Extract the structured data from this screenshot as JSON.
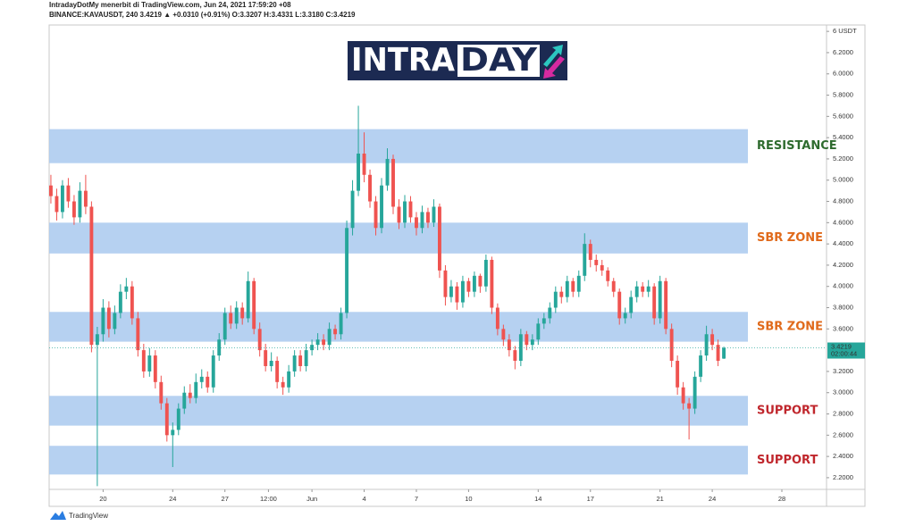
{
  "chart_data": {
    "type": "candlestick",
    "title": "IntradayDotMy menerbit di TradingView.com, Jun 24, 2021 17:59:20 +08",
    "subtitle": "BINANCE:KAVAUSDT, 240  3.4219 ▲ +0.0310 (+0.91%)  O:3.3207  H:3.4331  L:3.3180  C:3.4219",
    "logo": [
      "INTRA",
      "DAY"
    ],
    "brand": "TradingView",
    "countdown": "02:00:44",
    "up_color": "#26a69a",
    "down_color": "#ef5350",
    "zone_color": "#a9c9ee",
    "grid": false,
    "xlim": [
      -0.3,
      133.7
    ],
    "ylim": [
      2.09,
      6.46
    ],
    "xticks": [
      {
        "value": 9,
        "label": "20"
      },
      {
        "value": 21,
        "label": "24"
      },
      {
        "value": 30,
        "label": "27"
      },
      {
        "value": 37.5,
        "label": "12:00"
      },
      {
        "value": 45,
        "label": "Jun"
      },
      {
        "value": 54,
        "label": "4"
      },
      {
        "value": 63,
        "label": "7"
      },
      {
        "value": 72,
        "label": "10"
      },
      {
        "value": 84,
        "label": "14"
      },
      {
        "value": 93,
        "label": "17"
      },
      {
        "value": 105,
        "label": "21"
      },
      {
        "value": 114,
        "label": "24"
      },
      {
        "value": 126,
        "label": "28"
      }
    ],
    "yticks": [
      {
        "value": 2.2,
        "label": "2.2000"
      },
      {
        "value": 2.4,
        "label": "2.4000"
      },
      {
        "value": 2.6,
        "label": "2.6000"
      },
      {
        "value": 2.8,
        "label": "2.8000"
      },
      {
        "value": 3.0,
        "label": "3.0000"
      },
      {
        "value": 3.2,
        "label": "3.2000"
      },
      {
        "value": 3.6,
        "label": "3.6000"
      },
      {
        "value": 3.8,
        "label": "3.8000"
      },
      {
        "value": 4.0,
        "label": "4.0000"
      },
      {
        "value": 4.2,
        "label": "4.2000"
      },
      {
        "value": 4.4,
        "label": "4.4000"
      },
      {
        "value": 4.6,
        "label": "4.6000"
      },
      {
        "value": 4.8,
        "label": "4.8000"
      },
      {
        "value": 5.0,
        "label": "5.0000"
      },
      {
        "value": 5.2,
        "label": "5.2000"
      },
      {
        "value": 5.4,
        "label": "5.4000"
      },
      {
        "value": 5.6,
        "label": "5.6000"
      },
      {
        "value": 5.8,
        "label": "5.8000"
      },
      {
        "value": 6.0,
        "label": "6.0000"
      },
      {
        "value": 6.2,
        "label": "6.2000"
      },
      {
        "value": 6.4,
        "label": "6 USDT"
      }
    ],
    "zones": [
      {
        "label": "RESISTANCE",
        "low": 5.16,
        "high": 5.48,
        "color": "#2e6b2e"
      },
      {
        "label": "SBR ZONE",
        "low": 4.31,
        "high": 4.6,
        "color": "#e06a1b"
      },
      {
        "label": "SBR ZONE",
        "low": 3.48,
        "high": 3.76,
        "color": "#e06a1b"
      },
      {
        "label": "SUPPORT",
        "low": 2.69,
        "high": 2.97,
        "color": "#c0272d"
      },
      {
        "label": "SUPPORT",
        "low": 2.23,
        "high": 2.5,
        "color": "#c0272d"
      }
    ],
    "x": [
      0,
      1,
      2,
      3,
      4,
      5,
      6,
      7,
      8,
      9,
      10,
      11,
      12,
      13,
      14,
      15,
      16,
      17,
      18,
      19,
      20,
      21,
      22,
      23,
      24,
      25,
      26,
      27,
      28,
      29,
      30,
      31,
      32,
      33,
      34,
      35,
      36,
      37,
      38,
      39,
      40,
      41,
      42,
      43,
      44,
      45,
      46,
      47,
      48,
      49,
      50,
      51,
      52,
      53,
      54,
      55,
      56,
      57,
      58,
      59,
      60,
      61,
      62,
      63,
      64,
      65,
      66,
      67,
      68,
      69,
      70,
      71,
      72,
      73,
      74,
      75,
      76,
      77,
      78,
      79,
      80,
      81,
      82,
      83,
      84,
      85,
      86,
      87,
      88,
      89,
      90,
      91,
      92,
      93,
      94,
      95,
      96,
      97,
      98,
      99,
      100,
      101,
      102,
      103,
      104,
      105,
      106,
      107,
      108,
      109,
      110,
      111,
      112,
      113,
      114,
      115,
      116
    ],
    "open": [
      4.95,
      4.85,
      4.7,
      4.95,
      4.8,
      4.65,
      4.9,
      4.75,
      3.45,
      3.55,
      3.8,
      3.6,
      3.75,
      3.95,
      4.0,
      3.7,
      3.4,
      3.2,
      3.35,
      3.1,
      2.9,
      2.6,
      2.65,
      2.85,
      3.0,
      2.95,
      3.1,
      3.15,
      3.05,
      3.35,
      3.5,
      3.75,
      3.65,
      3.8,
      3.7,
      4.05,
      3.6,
      3.4,
      3.25,
      3.3,
      3.1,
      3.05,
      3.2,
      3.35,
      3.25,
      3.4,
      3.45,
      3.5,
      3.45,
      3.6,
      3.55,
      3.75,
      4.55,
      4.9,
      5.25,
      5.05,
      4.8,
      4.55,
      4.95,
      5.2,
      4.75,
      4.6,
      4.8,
      4.65,
      4.55,
      4.7,
      4.6,
      4.75,
      4.15,
      3.9,
      4.0,
      3.85,
      4.05,
      3.95,
      4.1,
      4.0,
      4.25,
      3.8,
      3.6,
      3.5,
      3.4,
      3.3,
      3.55,
      3.45,
      3.5,
      3.65,
      3.7,
      3.8,
      3.95,
      3.9,
      4.05,
      3.95,
      4.1,
      4.4,
      4.25,
      4.2,
      4.15,
      4.05,
      3.95,
      3.7,
      3.75,
      3.9,
      4.0,
      3.95,
      4.0,
      3.7,
      4.05,
      3.6,
      3.3,
      3.05,
      2.9,
      2.85,
      3.15,
      3.35,
      3.55,
      3.45,
      3.3207
    ],
    "high": [
      5.05,
      4.92,
      5.0,
      5.02,
      4.86,
      4.98,
      5.05,
      4.8,
      3.62,
      3.88,
      3.86,
      3.82,
      4.02,
      4.08,
      4.05,
      3.76,
      3.46,
      3.42,
      3.4,
      3.16,
      2.95,
      2.72,
      2.9,
      3.06,
      3.08,
      3.18,
      3.22,
      3.2,
      3.4,
      3.56,
      3.8,
      3.82,
      3.86,
      3.85,
      4.14,
      4.08,
      3.66,
      3.46,
      3.38,
      3.34,
      3.15,
      3.26,
      3.4,
      3.4,
      3.46,
      3.5,
      3.56,
      3.55,
      3.66,
      3.64,
      3.8,
      4.62,
      5.0,
      5.7,
      5.45,
      5.1,
      4.85,
      5.02,
      5.3,
      5.24,
      4.82,
      4.86,
      4.85,
      4.7,
      4.76,
      4.74,
      4.82,
      4.78,
      4.2,
      4.06,
      4.04,
      4.1,
      4.08,
      4.14,
      4.12,
      4.3,
      4.28,
      3.84,
      3.64,
      3.55,
      3.44,
      3.6,
      3.58,
      3.55,
      3.7,
      3.75,
      3.85,
      4.0,
      4.0,
      4.1,
      4.08,
      4.15,
      4.5,
      4.44,
      4.3,
      4.25,
      4.18,
      4.08,
      3.98,
      3.8,
      3.96,
      4.05,
      4.04,
      4.06,
      4.03,
      4.1,
      4.08,
      3.65,
      3.35,
      3.1,
      2.95,
      3.2,
      3.4,
      3.63,
      3.6,
      3.5,
      3.4331
    ],
    "low": [
      4.78,
      4.62,
      4.64,
      4.74,
      4.58,
      4.6,
      4.68,
      3.38,
      2.12,
      3.48,
      3.52,
      3.55,
      3.7,
      3.88,
      3.64,
      3.34,
      3.14,
      3.15,
      3.04,
      2.84,
      2.54,
      2.3,
      2.6,
      2.8,
      2.9,
      2.9,
      3.04,
      3.0,
      3.0,
      3.3,
      3.45,
      3.6,
      3.6,
      3.64,
      3.66,
      3.55,
      3.34,
      3.2,
      3.2,
      3.04,
      2.98,
      3.0,
      3.15,
      3.2,
      3.2,
      3.35,
      3.4,
      3.4,
      3.4,
      3.5,
      3.5,
      3.7,
      4.48,
      4.85,
      4.98,
      4.74,
      4.48,
      4.5,
      4.9,
      4.68,
      4.54,
      4.55,
      4.6,
      4.48,
      4.5,
      4.55,
      4.56,
      4.08,
      3.82,
      3.85,
      3.78,
      3.8,
      3.9,
      3.9,
      3.94,
      3.95,
      3.74,
      3.54,
      3.44,
      3.34,
      3.22,
      3.25,
      3.4,
      3.4,
      3.45,
      3.6,
      3.65,
      3.75,
      3.84,
      3.85,
      3.9,
      3.9,
      4.05,
      4.18,
      4.14,
      4.1,
      4.0,
      3.9,
      3.64,
      3.65,
      3.7,
      3.85,
      3.9,
      3.9,
      3.64,
      3.65,
      3.55,
      3.24,
      2.98,
      2.84,
      2.56,
      2.8,
      3.1,
      3.3,
      3.4,
      3.25,
      3.318
    ],
    "close": [
      4.85,
      4.7,
      4.95,
      4.8,
      4.65,
      4.9,
      4.75,
      3.45,
      3.55,
      3.8,
      3.6,
      3.75,
      3.95,
      4.0,
      3.7,
      3.4,
      3.2,
      3.35,
      3.1,
      2.9,
      2.6,
      2.65,
      2.85,
      3.0,
      2.95,
      3.1,
      3.15,
      3.05,
      3.35,
      3.5,
      3.75,
      3.65,
      3.8,
      3.7,
      4.05,
      3.6,
      3.4,
      3.25,
      3.3,
      3.1,
      3.05,
      3.2,
      3.35,
      3.25,
      3.4,
      3.45,
      3.5,
      3.45,
      3.6,
      3.55,
      3.75,
      4.55,
      4.9,
      5.25,
      5.05,
      4.8,
      4.55,
      4.95,
      5.2,
      4.75,
      4.6,
      4.8,
      4.65,
      4.55,
      4.7,
      4.6,
      4.75,
      4.15,
      3.9,
      4.0,
      3.85,
      4.05,
      3.95,
      4.1,
      4.0,
      4.25,
      3.8,
      3.6,
      3.5,
      3.4,
      3.3,
      3.55,
      3.45,
      3.5,
      3.65,
      3.7,
      3.8,
      3.95,
      3.9,
      4.05,
      3.95,
      4.1,
      4.4,
      4.25,
      4.2,
      4.15,
      4.05,
      3.95,
      3.7,
      3.75,
      3.9,
      4.0,
      3.95,
      4.0,
      3.7,
      4.05,
      3.6,
      3.3,
      3.05,
      2.9,
      2.85,
      3.15,
      3.35,
      3.55,
      3.45,
      3.3,
      3.4219
    ]
  }
}
